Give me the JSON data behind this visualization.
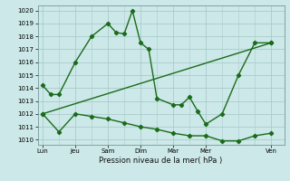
{
  "background_color": "#cce8e8",
  "grid_color": "#aacccc",
  "line_color": "#1a6b1a",
  "title": "Pression niveau de la mer( hPa )",
  "ylabel_values": [
    1010,
    1011,
    1012,
    1013,
    1014,
    1015,
    1016,
    1017,
    1018,
    1019,
    1020
  ],
  "xtick_labels": [
    "Lun",
    "Jeu",
    "Sam",
    "Dim",
    "Mar",
    "Mer",
    "Ven"
  ],
  "xtick_positions": [
    0,
    2,
    4,
    6,
    8,
    10,
    14
  ],
  "ylim": [
    1009.6,
    1020.4
  ],
  "xlim": [
    -0.3,
    14.8
  ],
  "line1_x": [
    0,
    0.5,
    1,
    2,
    3,
    4,
    4.5,
    5,
    5.5,
    6,
    6.5,
    7,
    8,
    8.5,
    9,
    9.5,
    10,
    11,
    12,
    13,
    14
  ],
  "line1_y": [
    1014.2,
    1013.5,
    1013.5,
    1016.0,
    1018.0,
    1019.0,
    1018.3,
    1018.2,
    1020.0,
    1017.5,
    1017.0,
    1013.2,
    1012.7,
    1012.7,
    1013.3,
    1012.2,
    1011.2,
    1012.0,
    1015.0,
    1017.5,
    1017.5
  ],
  "line2_x": [
    0,
    1,
    2,
    3,
    4,
    5,
    6,
    7,
    8,
    9,
    10,
    11,
    12,
    13,
    14
  ],
  "line2_y": [
    1012.0,
    1010.6,
    1012.0,
    1011.8,
    1011.6,
    1011.3,
    1011.0,
    1010.8,
    1010.5,
    1010.3,
    1010.3,
    1009.9,
    1009.9,
    1010.3,
    1010.5
  ],
  "line3_x": [
    0,
    14
  ],
  "line3_y": [
    1012.0,
    1017.5
  ],
  "marker": "D",
  "markersize": 2.2,
  "linewidth": 1.0,
  "tick_fontsize": 5.0,
  "xlabel_fontsize": 6.0
}
